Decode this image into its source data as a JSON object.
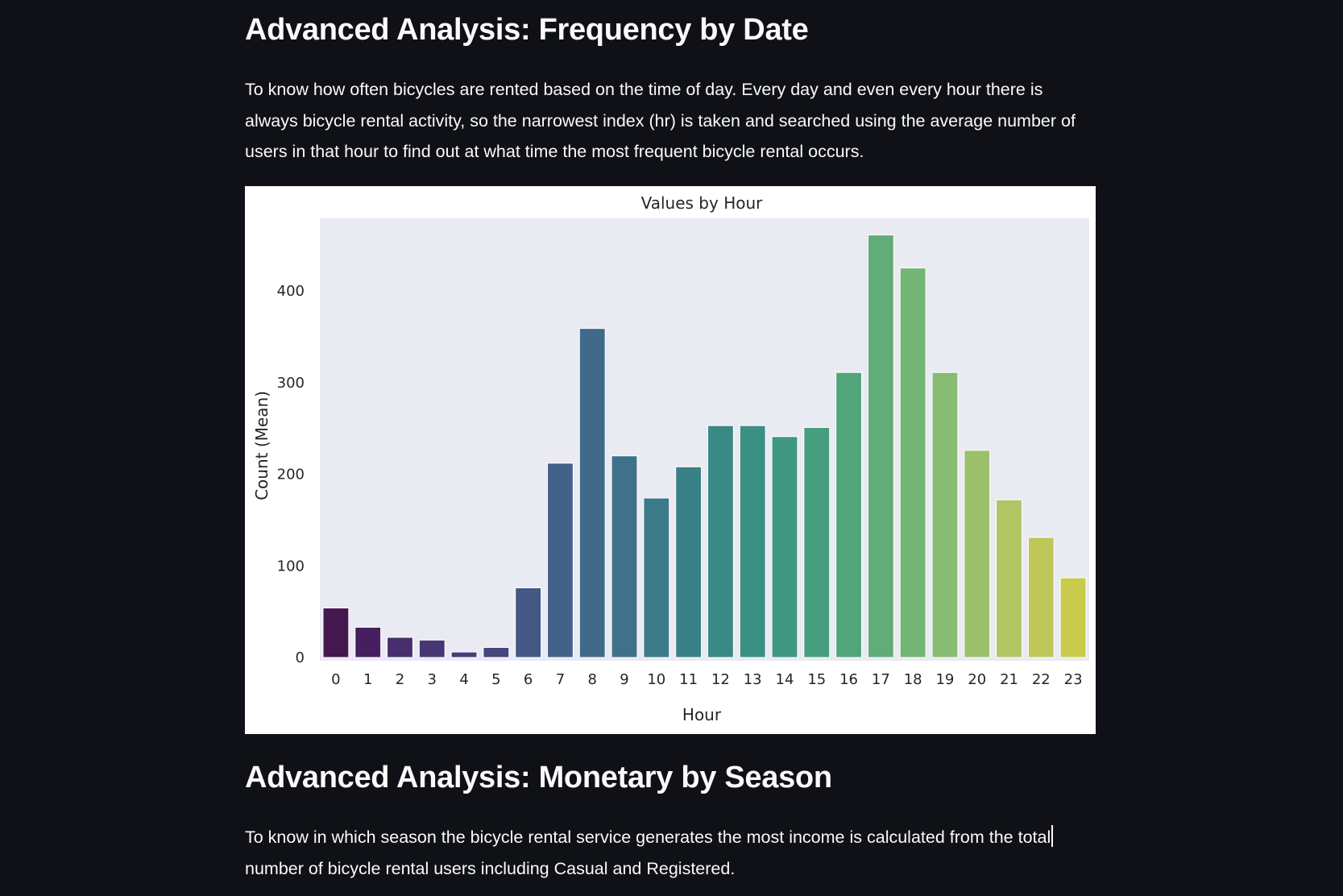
{
  "sections": [
    {
      "title": "Advanced Analysis: Frequency by Date",
      "text": "To know how often bicycles are rented based on the time of day. Every day and even every hour there is always bicycle rental activity, so the narrowest index (hr) is taken and searched using the average number of users in that hour to find out at what time the most frequent bicycle rental occurs."
    },
    {
      "title": "Advanced Analysis: Monetary by Season",
      "text": "To know in which season the bicycle rental service generates the most income is calculated from the total number of bicycle rental users including Casual and Registered."
    }
  ],
  "chart_data": {
    "type": "bar",
    "title": "Values by Hour",
    "xlabel": "Hour",
    "ylabel": "Count (Mean)",
    "categories": [
      "0",
      "1",
      "2",
      "3",
      "4",
      "5",
      "6",
      "7",
      "8",
      "9",
      "10",
      "11",
      "12",
      "13",
      "14",
      "15",
      "16",
      "17",
      "18",
      "19",
      "20",
      "21",
      "22",
      "23"
    ],
    "values": [
      54,
      33,
      22,
      19,
      6,
      11,
      76,
      212,
      359,
      220,
      174,
      208,
      253,
      253,
      241,
      251,
      311,
      461,
      425,
      311,
      226,
      172,
      131,
      87
    ],
    "yticks": [
      0,
      100,
      200,
      300,
      400
    ],
    "ylim": [
      0,
      482
    ],
    "grid": false,
    "palette": "viridis",
    "colors": [
      "#44174f",
      "#461f60",
      "#472f6d",
      "#473875",
      "#473f7a",
      "#45477e",
      "#435885",
      "#44618a",
      "#41698a",
      "#3f728a",
      "#3b7a89",
      "#3a8187",
      "#398986",
      "#3b8f83",
      "#3f9681",
      "#479e7f",
      "#52a57b",
      "#61ac77",
      "#72b574",
      "#87bc72",
      "#9bc06c",
      "#b0c563",
      "#bec758",
      "#c9cb4c"
    ],
    "plot_background": "#eaeaf2"
  }
}
